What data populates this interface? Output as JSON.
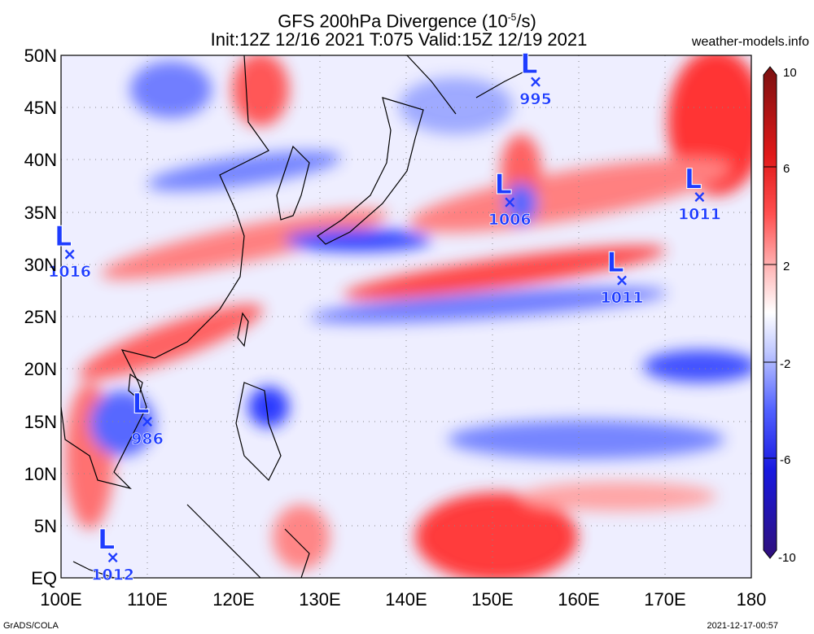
{
  "header": {
    "title_line1": "GFS 200hPa Divergence (10",
    "title_sup": "-5",
    "title_unit_tail": "/s)",
    "title_line2": "Init:12Z 12/16 2021 T:075 Valid:15Z 12/19 2021",
    "site": "weather-models.info"
  },
  "footer": {
    "left": "GrADS/COLA",
    "right": "2021-12-17-00:57"
  },
  "axes": {
    "lat_labels": [
      "50N",
      "45N",
      "40N",
      "35N",
      "30N",
      "25N",
      "20N",
      "15N",
      "10N",
      "5N",
      "EQ"
    ],
    "lon_labels": [
      "100E",
      "110E",
      "120E",
      "130E",
      "140E",
      "150E",
      "160E",
      "170E",
      "180"
    ]
  },
  "colorbar": {
    "labels": [
      "10",
      "6",
      "2",
      "-2",
      "-6",
      "-10"
    ],
    "colors": [
      "#8b1a1a",
      "#ff2020",
      "#ff9a9a",
      "#ffffff",
      "#9aa8ff",
      "#2020ff",
      "#3a0a8a"
    ]
  },
  "map_data": {
    "extent": {
      "lon": [
        100,
        180
      ],
      "lat": [
        0,
        50
      ]
    },
    "lows": [
      {
        "symbol": "L",
        "pressure": "995",
        "lon": 155,
        "lat": 47.5
      },
      {
        "symbol": "L",
        "pressure": "1006",
        "lon": 152,
        "lat": 36
      },
      {
        "symbol": "L",
        "pressure": "1011",
        "lon": 174,
        "lat": 36.5
      },
      {
        "symbol": "L",
        "pressure": "1016",
        "lon": 101,
        "lat": 31
      },
      {
        "symbol": "L",
        "pressure": "1011",
        "lon": 165,
        "lat": 28.5
      },
      {
        "symbol": "L",
        "pressure": "986",
        "lon": 110,
        "lat": 15
      },
      {
        "symbol": "L",
        "pressure": "1012",
        "lon": 106,
        "lat": 2
      }
    ]
  }
}
